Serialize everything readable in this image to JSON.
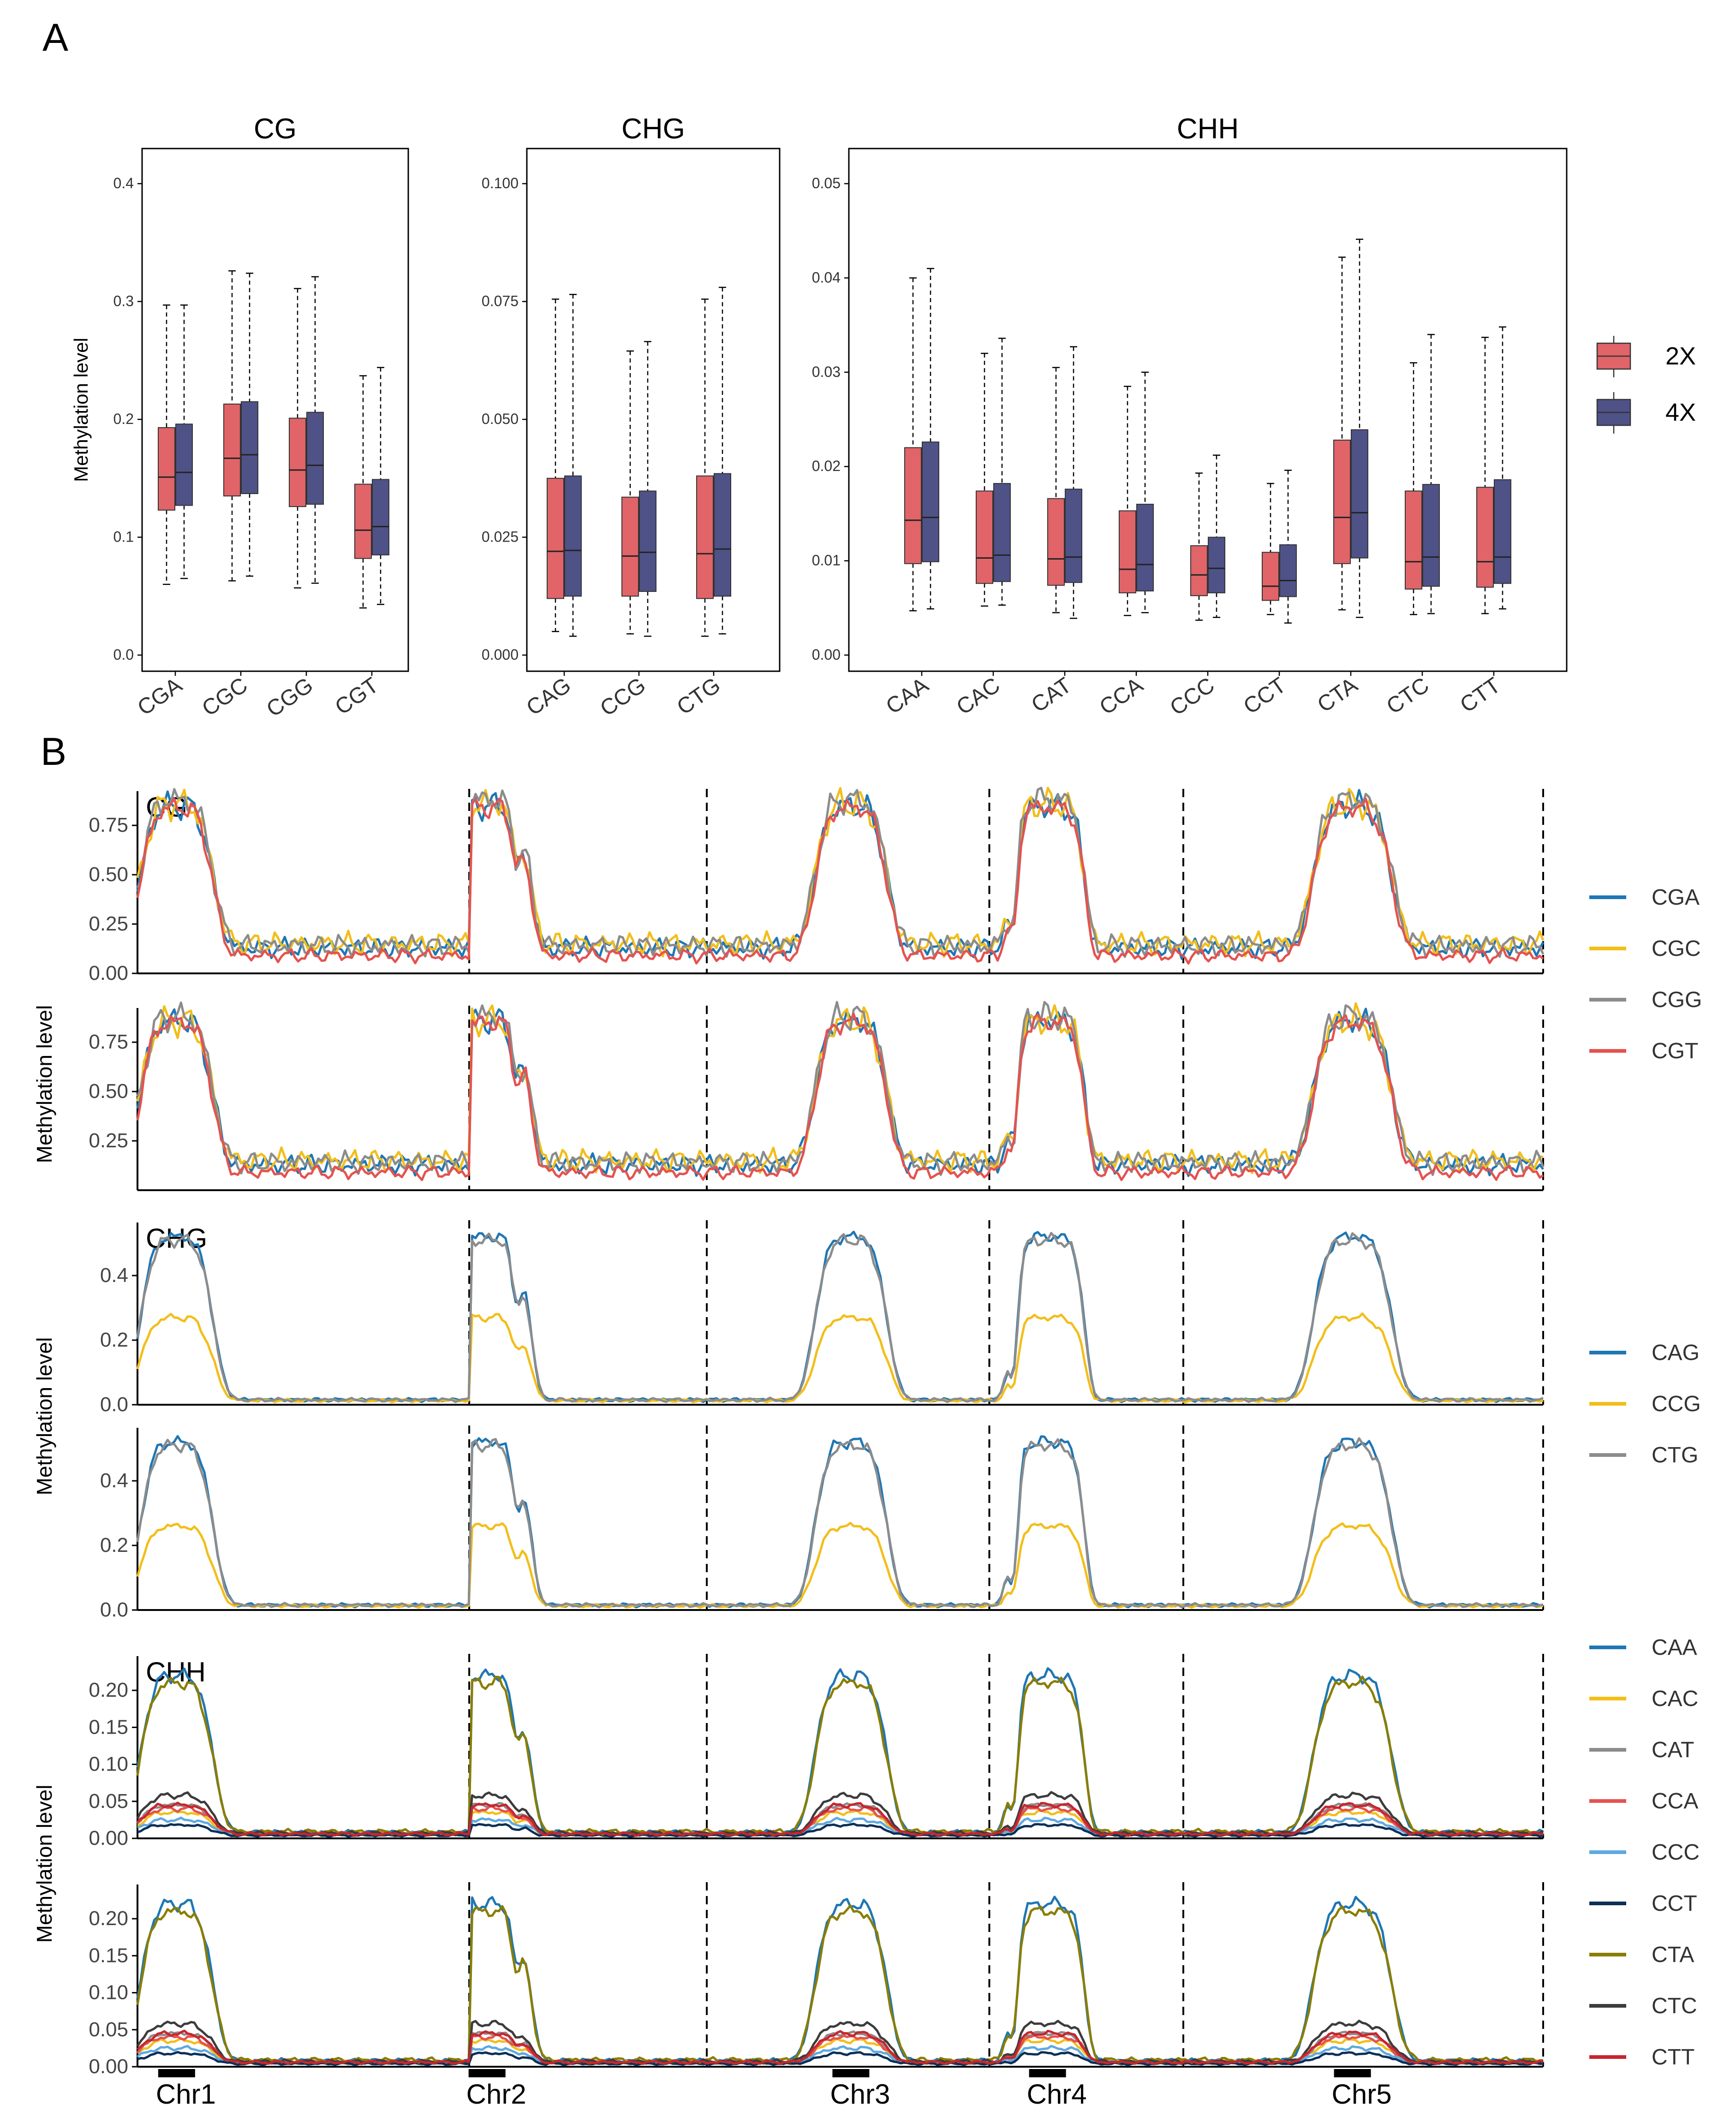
{
  "panel_labels": {
    "a": "A",
    "b": "B"
  },
  "colors": {
    "g2x": "#E06468",
    "g4x": "#4F5287",
    "CGA": "#1F77B4",
    "CGC": "#F2BE1A",
    "CGG": "#8C8C8C",
    "CGT": "#E5524F",
    "CAG": "#1F77B4",
    "CCG": "#F2BE1A",
    "CTG": "#8C8C8C",
    "CAA": "#1F77B4",
    "CAC": "#F2BE1A",
    "CAT": "#8C8C8C",
    "CCA": "#E5524F",
    "CCC": "#5EA9E0",
    "CCT": "#0C2F57",
    "CTA": "#8A7D00",
    "CTC": "#3C3C3C",
    "CTT": "#C7262E"
  },
  "legend_a": {
    "items": [
      "2X",
      "4X"
    ]
  },
  "legends_b": {
    "cg": [
      "CGA",
      "CGC",
      "CGG",
      "CGT"
    ],
    "chg": [
      "CAG",
      "CCG",
      "CTG"
    ],
    "chh": [
      "CAA",
      "CAC",
      "CAT",
      "CCA",
      "CCC",
      "CCT",
      "CTA",
      "CTC",
      "CTT"
    ]
  },
  "chart_data": [
    {
      "type": "box",
      "id": "box_cg",
      "title": "CG",
      "ylabel": "Methylation level",
      "ylim": [
        0,
        0.42
      ],
      "yticks": [
        0.0,
        0.1,
        0.2,
        0.3,
        0.4
      ],
      "ytick_labels": [
        "0.0",
        "0.1",
        "0.2",
        "0.3",
        "0.4"
      ],
      "categories": [
        "CGA",
        "CGC",
        "CGG",
        "CGT"
      ],
      "series": [
        {
          "name": "2X",
          "stats": [
            {
              "min": 0.06,
              "q1": 0.123,
              "median": 0.151,
              "q3": 0.193,
              "max": 0.297
            },
            {
              "min": 0.063,
              "q1": 0.135,
              "median": 0.167,
              "q3": 0.213,
              "max": 0.326
            },
            {
              "min": 0.057,
              "q1": 0.126,
              "median": 0.157,
              "q3": 0.201,
              "max": 0.311
            },
            {
              "min": 0.04,
              "q1": 0.082,
              "median": 0.106,
              "q3": 0.145,
              "max": 0.237
            }
          ]
        },
        {
          "name": "4X",
          "stats": [
            {
              "min": 0.065,
              "q1": 0.127,
              "median": 0.155,
              "q3": 0.196,
              "max": 0.297
            },
            {
              "min": 0.067,
              "q1": 0.137,
              "median": 0.17,
              "q3": 0.215,
              "max": 0.324
            },
            {
              "min": 0.061,
              "q1": 0.128,
              "median": 0.161,
              "q3": 0.206,
              "max": 0.321
            },
            {
              "min": 0.043,
              "q1": 0.085,
              "median": 0.109,
              "q3": 0.149,
              "max": 0.244
            }
          ]
        }
      ]
    },
    {
      "type": "box",
      "id": "box_chg",
      "title": "CHG",
      "ylim": [
        0,
        0.105
      ],
      "yticks": [
        0.0,
        0.025,
        0.05,
        0.075,
        0.1
      ],
      "ytick_labels": [
        "0.000",
        "0.025",
        "0.050",
        "0.075",
        "0.100"
      ],
      "categories": [
        "CAG",
        "CCG",
        "CTG"
      ],
      "series": [
        {
          "name": "2X",
          "stats": [
            {
              "min": 0.005,
              "q1": 0.012,
              "median": 0.022,
              "q3": 0.0375,
              "max": 0.0755
            },
            {
              "min": 0.0045,
              "q1": 0.0125,
              "median": 0.021,
              "q3": 0.0335,
              "max": 0.0645
            },
            {
              "min": 0.004,
              "q1": 0.012,
              "median": 0.0215,
              "q3": 0.038,
              "max": 0.0755
            }
          ]
        },
        {
          "name": "4X",
          "stats": [
            {
              "min": 0.004,
              "q1": 0.0125,
              "median": 0.0222,
              "q3": 0.038,
              "max": 0.0765
            },
            {
              "min": 0.004,
              "q1": 0.0135,
              "median": 0.0218,
              "q3": 0.0348,
              "max": 0.0665
            },
            {
              "min": 0.0045,
              "q1": 0.0125,
              "median": 0.0225,
              "q3": 0.0385,
              "max": 0.078
            }
          ]
        }
      ]
    },
    {
      "type": "box",
      "id": "box_chh",
      "title": "CHH",
      "ylim": [
        0,
        0.0525
      ],
      "yticks": [
        0.0,
        0.01,
        0.02,
        0.03,
        0.04,
        0.05
      ],
      "ytick_labels": [
        "0.00",
        "0.01",
        "0.02",
        "0.03",
        "0.04",
        "0.05"
      ],
      "categories": [
        "CAA",
        "CAC",
        "CAT",
        "CCA",
        "CCC",
        "CCT",
        "CTA",
        "CTC",
        "CTT"
      ],
      "series": [
        {
          "name": "2X",
          "stats": [
            {
              "min": 0.0047,
              "q1": 0.0097,
              "median": 0.0143,
              "q3": 0.022,
              "max": 0.04
            },
            {
              "min": 0.0052,
              "q1": 0.0076,
              "median": 0.0103,
              "q3": 0.0174,
              "max": 0.032
            },
            {
              "min": 0.0045,
              "q1": 0.0074,
              "median": 0.0102,
              "q3": 0.0166,
              "max": 0.0305
            },
            {
              "min": 0.0042,
              "q1": 0.0066,
              "median": 0.0091,
              "q3": 0.0153,
              "max": 0.0285
            },
            {
              "min": 0.0037,
              "q1": 0.0063,
              "median": 0.0085,
              "q3": 0.0116,
              "max": 0.0193
            },
            {
              "min": 0.0043,
              "q1": 0.0058,
              "median": 0.0073,
              "q3": 0.0109,
              "max": 0.0182
            },
            {
              "min": 0.0048,
              "q1": 0.0097,
              "median": 0.0146,
              "q3": 0.0228,
              "max": 0.0422
            },
            {
              "min": 0.0043,
              "q1": 0.007,
              "median": 0.0099,
              "q3": 0.0174,
              "max": 0.031
            },
            {
              "min": 0.0044,
              "q1": 0.0072,
              "median": 0.0099,
              "q3": 0.0178,
              "max": 0.0337
            }
          ]
        },
        {
          "name": "4X",
          "stats": [
            {
              "min": 0.0049,
              "q1": 0.0099,
              "median": 0.0146,
              "q3": 0.0226,
              "max": 0.041
            },
            {
              "min": 0.0053,
              "q1": 0.0078,
              "median": 0.0106,
              "q3": 0.0182,
              "max": 0.0336
            },
            {
              "min": 0.0039,
              "q1": 0.0077,
              "median": 0.0104,
              "q3": 0.0176,
              "max": 0.0327
            },
            {
              "min": 0.0045,
              "q1": 0.0068,
              "median": 0.0096,
              "q3": 0.016,
              "max": 0.03
            },
            {
              "min": 0.004,
              "q1": 0.0066,
              "median": 0.0092,
              "q3": 0.0125,
              "max": 0.0212
            },
            {
              "min": 0.0034,
              "q1": 0.0062,
              "median": 0.0079,
              "q3": 0.0117,
              "max": 0.0196
            },
            {
              "min": 0.004,
              "q1": 0.0103,
              "median": 0.0151,
              "q3": 0.0239,
              "max": 0.0441
            },
            {
              "min": 0.0044,
              "q1": 0.0073,
              "median": 0.0104,
              "q3": 0.0181,
              "max": 0.034
            },
            {
              "min": 0.0049,
              "q1": 0.0076,
              "median": 0.0104,
              "q3": 0.0186,
              "max": 0.0348
            }
          ]
        }
      ]
    },
    {
      "type": "line",
      "id": "line_profiles",
      "ylabel": "Methylation level",
      "x_positions": [
        0,
        0.0952,
        0.1905,
        0.2857,
        0.381,
        0.4762,
        0.5714,
        0.6667,
        0.7619,
        0.8571,
        0.9524,
        1.0
      ],
      "chromosomes": [
        {
          "name": "Chr1",
          "start": 0.0,
          "end": 0.236,
          "center": 0.118,
          "peak_shape": "single"
        },
        {
          "name": "Chr2",
          "start": 0.236,
          "end": 0.405,
          "center": 0.075,
          "peak_shape": "double"
        },
        {
          "name": "Chr3",
          "start": 0.405,
          "end": 0.606,
          "center": 0.51,
          "peak_shape": "wide"
        },
        {
          "name": "Chr4",
          "start": 0.606,
          "end": 0.744,
          "center": 0.3,
          "peak_shape": "notched"
        },
        {
          "name": "Chr5",
          "start": 0.744,
          "end": 1.0,
          "center": 0.47,
          "peak_shape": "single"
        }
      ],
      "x_labels": [
        "Chr1",
        "Chr2",
        "Chr3",
        "Chr4",
        "Chr5"
      ],
      "panels": [
        {
          "context": "CG",
          "label": "CG",
          "ylim": [
            0,
            0.9
          ],
          "yticks": [
            0,
            0.25,
            0.5,
            0.75
          ],
          "ytick_labels": [
            "0.00",
            "0.25",
            "0.50",
            "0.75"
          ],
          "series_names": [
            "CGA",
            "CGC",
            "CGG",
            "CGT"
          ],
          "base": [
            0.13,
            0.15,
            0.14,
            0.09
          ],
          "peak": [
            0.85,
            0.86,
            0.88,
            0.84
          ]
        },
        {
          "context": "CG",
          "label": "",
          "ylim": [
            0,
            0.9
          ],
          "yticks": [
            0.25,
            0.5,
            0.75
          ],
          "ytick_labels": [
            "0.25",
            "0.50",
            "0.75"
          ],
          "series_names": [
            "CGA",
            "CGC",
            "CGG",
            "CGT"
          ],
          "base": [
            0.13,
            0.15,
            0.14,
            0.09
          ],
          "peak": [
            0.86,
            0.86,
            0.88,
            0.85
          ]
        },
        {
          "context": "CHG",
          "label": "CHG",
          "ylim": [
            0,
            0.55
          ],
          "yticks": [
            0,
            0.2,
            0.4
          ],
          "ytick_labels": [
            "0.0",
            "0.2",
            "0.4"
          ],
          "series_names": [
            "CAG",
            "CCG",
            "CTG"
          ],
          "base": [
            0.015,
            0.013,
            0.015
          ],
          "peak": [
            0.52,
            0.27,
            0.51
          ]
        },
        {
          "context": "CHG",
          "label": "",
          "ylim": [
            0,
            0.55
          ],
          "yticks": [
            0,
            0.2,
            0.4
          ],
          "ytick_labels": [
            "0.0",
            "0.2",
            "0.4"
          ],
          "series_names": [
            "CAG",
            "CCG",
            "CTG"
          ],
          "base": [
            0.015,
            0.013,
            0.015
          ],
          "peak": [
            0.52,
            0.26,
            0.51
          ]
        },
        {
          "context": "CHH",
          "label": "CHH",
          "ylim": [
            0,
            0.24
          ],
          "yticks": [
            0,
            0.05,
            0.1,
            0.15,
            0.2
          ],
          "ytick_labels": [
            "0.00",
            "0.05",
            "0.10",
            "0.15",
            "0.20"
          ],
          "series_names": [
            "CAA",
            "CAC",
            "CAT",
            "CCA",
            "CCC",
            "CCT",
            "CTA",
            "CTC",
            "CTT"
          ],
          "base": [
            0.008,
            0.006,
            0.005,
            0.007,
            0.006,
            0.004,
            0.009,
            0.007,
            0.006
          ],
          "peak": [
            0.22,
            0.035,
            0.045,
            0.04,
            0.025,
            0.018,
            0.21,
            0.058,
            0.045
          ]
        },
        {
          "context": "CHH",
          "label": "",
          "ylim": [
            0,
            0.24
          ],
          "yticks": [
            0,
            0.05,
            0.1,
            0.15,
            0.2
          ],
          "ytick_labels": [
            "0.00",
            "0.05",
            "0.10",
            "0.15",
            "0.20"
          ],
          "series_names": [
            "CAA",
            "CAC",
            "CAT",
            "CCA",
            "CCC",
            "CCT",
            "CTA",
            "CTC",
            "CTT"
          ],
          "base": [
            0.008,
            0.006,
            0.005,
            0.007,
            0.006,
            0.004,
            0.009,
            0.007,
            0.006
          ],
          "peak": [
            0.22,
            0.035,
            0.045,
            0.04,
            0.025,
            0.018,
            0.21,
            0.058,
            0.045
          ]
        }
      ]
    }
  ]
}
